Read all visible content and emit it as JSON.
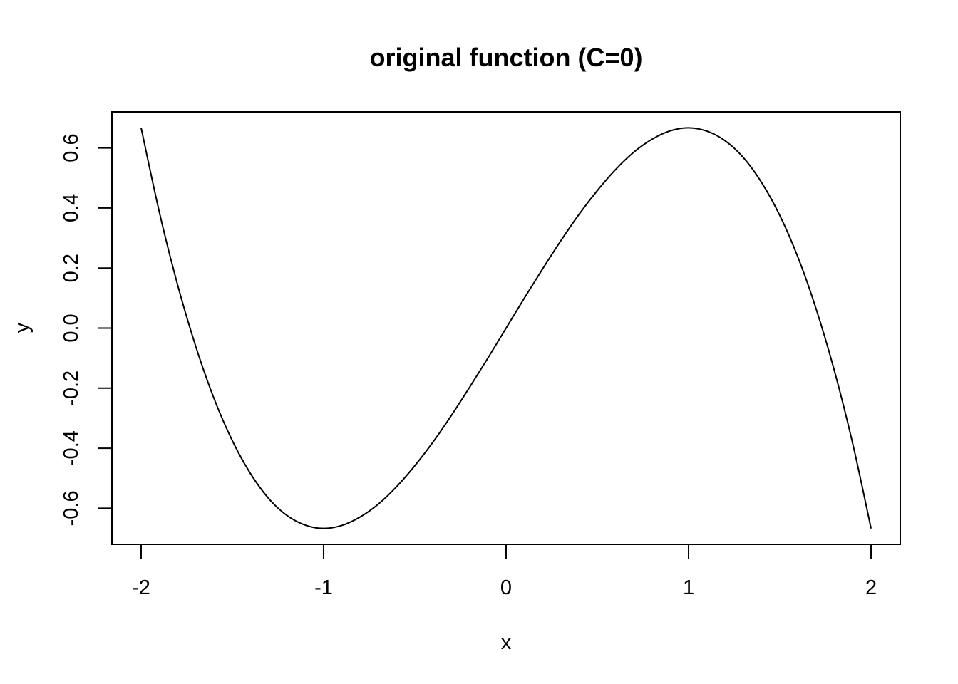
{
  "chart_data": {
    "type": "line",
    "title": "original function (C=0)",
    "xlabel": "x",
    "ylabel": "y",
    "x_ticks": [
      -2,
      -1,
      0,
      1,
      2
    ],
    "x_tick_labels": [
      "-2",
      "-1",
      "0",
      "1",
      "2"
    ],
    "y_ticks": [
      -0.6,
      -0.4,
      -0.2,
      0.0,
      0.2,
      0.4,
      0.6
    ],
    "y_tick_labels": [
      "-0.6",
      "-0.4",
      "-0.2",
      "0.0",
      "0.2",
      "0.4",
      "0.6"
    ],
    "xlim": [
      -2.16,
      2.16
    ],
    "ylim": [
      -0.72,
      0.72
    ],
    "grid": false,
    "series": [
      {
        "color": "#000000",
        "x": [
          -2,
          -1.9,
          -1.8,
          -1.7,
          -1.6,
          -1.5,
          -1.4,
          -1.3,
          -1.2,
          -1.1,
          -1,
          -0.9,
          -0.8,
          -0.7,
          -0.6,
          -0.5,
          -0.4,
          -0.3,
          -0.2,
          -0.1,
          0,
          0.1,
          0.2,
          0.3,
          0.4,
          0.5,
          0.6,
          0.7,
          0.8,
          0.9,
          1,
          1.1,
          1.2,
          1.3,
          1.4,
          1.5,
          1.6,
          1.7,
          1.8,
          1.9,
          2
        ],
        "y": [
          0.667,
          0.386,
          0.144,
          -0.062,
          -0.235,
          -0.375,
          -0.485,
          -0.568,
          -0.624,
          -0.656,
          -0.667,
          -0.657,
          -0.629,
          -0.586,
          -0.528,
          -0.458,
          -0.379,
          -0.291,
          -0.197,
          -0.1,
          0,
          0.1,
          0.197,
          0.291,
          0.379,
          0.458,
          0.528,
          0.586,
          0.629,
          0.657,
          0.667,
          0.656,
          0.624,
          0.568,
          0.485,
          0.375,
          0.235,
          0.062,
          -0.144,
          -0.386,
          -0.667
        ]
      }
    ]
  }
}
